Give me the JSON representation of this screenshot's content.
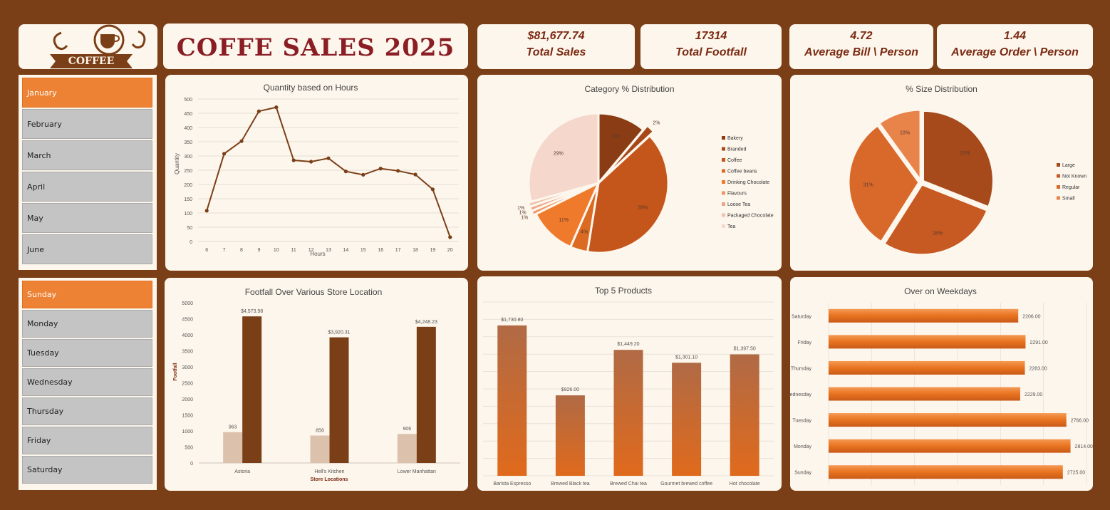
{
  "logo": {
    "text": "COFFEE"
  },
  "title": "COFFE SALES 2025",
  "kpis": [
    {
      "value": "$81,677.74",
      "label": "Total Sales"
    },
    {
      "value": "17314",
      "label": "Total Footfall"
    },
    {
      "value": "4.72",
      "label": "Average Bill \\ Person"
    },
    {
      "value": "1.44",
      "label": "Average Order \\ Person"
    }
  ],
  "months": {
    "items": [
      "January",
      "February",
      "March",
      "April",
      "May",
      "June"
    ],
    "selected": "January"
  },
  "weekdays": {
    "items": [
      "Sunday",
      "Monday",
      "Tuesday",
      "Wednesday",
      "Thursday",
      "Friday",
      "Saturday"
    ],
    "selected": "Sunday"
  },
  "colors": {
    "brown": "#7b3f17",
    "orange": "#ee8234",
    "card": "#fdf6ec",
    "title": "#8b1e24"
  },
  "chart_data": [
    {
      "id": "hours",
      "type": "line",
      "title": "Quantity based on Hours",
      "xlabel": "Hours",
      "ylabel": "Quantity",
      "ylim": [
        0,
        500
      ],
      "yticks": [
        0,
        50,
        100,
        150,
        200,
        250,
        300,
        350,
        400,
        450,
        500
      ],
      "x": [
        6,
        7,
        8,
        9,
        10,
        11,
        12,
        13,
        14,
        15,
        16,
        17,
        18,
        19,
        20
      ],
      "values": [
        108,
        308,
        352,
        457,
        471,
        285,
        280,
        292,
        246,
        234,
        256,
        248,
        235,
        183,
        15
      ],
      "color": "#7b3f17"
    },
    {
      "id": "category",
      "type": "pie",
      "title": "Category % Distribution",
      "legend": "right",
      "slices": [
        {
          "label": "Bakery",
          "value": 11,
          "text": "11%",
          "color": "#8a3d14"
        },
        {
          "label": "Branded",
          "value": 2,
          "text": "2%",
          "color": "#a6481a"
        },
        {
          "label": "Coffee",
          "value": 39,
          "text": "39%",
          "color": "#c5561b"
        },
        {
          "label": "Coffee beans",
          "value": 4,
          "text": "4%",
          "color": "#db6a22"
        },
        {
          "label": "Drinking Chocolate",
          "value": 11,
          "text": "11%",
          "color": "#f07a2c"
        },
        {
          "label": "Flavours",
          "value": 1,
          "text": "1%",
          "color": "#f2956a"
        },
        {
          "label": "Loose Tea",
          "value": 1,
          "text": "1%",
          "color": "#eba58a"
        },
        {
          "label": "Packaged Chocolate",
          "value": 1,
          "text": "1%",
          "color": "#efc2ad"
        },
        {
          "label": "Tea",
          "value": 29,
          "text": "29%",
          "color": "#f5d7cb"
        }
      ]
    },
    {
      "id": "size",
      "type": "pie",
      "title": "% Size Distribution",
      "legend": "right",
      "slices": [
        {
          "label": "Large",
          "value": 31,
          "text": "31%",
          "color": "#a64a1b"
        },
        {
          "label": "Not Known",
          "value": 28,
          "text": "28%",
          "color": "#c65a22"
        },
        {
          "label": "Regular",
          "value": 31,
          "text": "31%",
          "color": "#d8692a"
        },
        {
          "label": "Small",
          "value": 10,
          "text": "10%",
          "color": "#e8834a"
        }
      ]
    },
    {
      "id": "footfall",
      "type": "bar",
      "title": "Footfall Over Various Store Location",
      "xlabel": "Store Locations",
      "ylabel": "Footfall",
      "ylim": [
        0,
        5000
      ],
      "yticks": [
        0,
        500,
        1000,
        1500,
        2000,
        2500,
        3000,
        3500,
        4000,
        4500,
        5000
      ],
      "categories": [
        "Astoria",
        "Hell's Kitchen",
        "Lower Manhattan"
      ],
      "series": [
        {
          "values": [
            963,
            856,
            906
          ],
          "labels": [
            "963",
            "856",
            "906"
          ],
          "color": "#dcc1ad"
        },
        {
          "values": [
            4573.98,
            3920.31,
            4248.23
          ],
          "labels": [
            "$4,573.98",
            "$3,920.31",
            "$4,248.23"
          ],
          "color": "#7b3f17"
        }
      ]
    },
    {
      "id": "products",
      "type": "bar",
      "title": "Top 5 Products",
      "ylim": [
        0,
        2000
      ],
      "categories": [
        "Barista Espresso",
        "Brewed Black tea",
        "Brewed Chai tea",
        "Gourmet brewed coffee",
        "Hot chocolate"
      ],
      "values": [
        1730.8,
        926,
        1449.2,
        1301.1,
        1397.5
      ],
      "labels": [
        "$1,730.80",
        "$926.00",
        "$1,449.20",
        "$1,301.10",
        "$1,397.50"
      ]
    },
    {
      "id": "weekdays",
      "type": "bar",
      "orientation": "horizontal",
      "title": "Over on Weekdays",
      "xlim": [
        0,
        3000
      ],
      "categories": [
        "Saturday",
        "Friday",
        "Thursday",
        "Wednesday",
        "Tuesday",
        "Monday",
        "Sunday"
      ],
      "values": [
        2206,
        2291,
        2283,
        2229,
        2766,
        2814,
        2725
      ],
      "labels": [
        "2206.00",
        "2291.00",
        "2283.00",
        "2229.00",
        "2766.00",
        "2814.00",
        "2725.00"
      ]
    }
  ]
}
